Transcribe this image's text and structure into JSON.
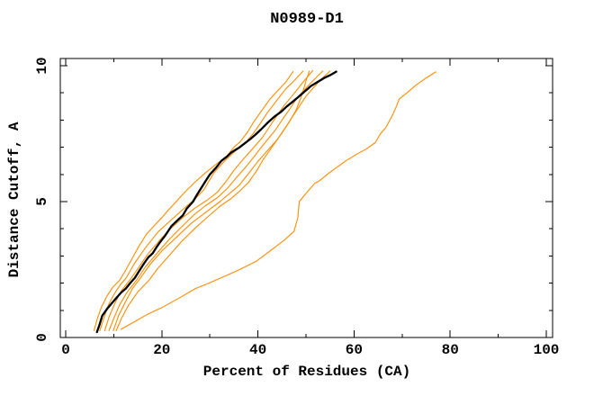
{
  "window": {
    "background": "#ffffff"
  },
  "chart_data": {
    "type": "line",
    "title": "N0989-D1",
    "xlabel": "Percent of Residues (CA)",
    "ylabel": "Distance Cutoff, A",
    "xlim": [
      0,
      100
    ],
    "ylim": [
      0,
      10
    ],
    "x_major_ticks": [
      0,
      20,
      40,
      60,
      80,
      100
    ],
    "x_minor_ticks": [
      10,
      30,
      50,
      70,
      90
    ],
    "y_major_ticks": [
      0,
      5,
      10
    ],
    "y_minor_ticks": [
      1,
      2,
      3,
      4,
      6,
      7,
      8,
      9
    ],
    "grid": false,
    "legend": "none",
    "frame_style": "closed box, inward mirrored ticks, rotated y tick labels",
    "colors": {
      "frame": "#000000",
      "text": "#000000",
      "reference_curve": "#000000",
      "model_curve": "#ff8c00"
    },
    "series": [
      {
        "name": "model-curve-1",
        "color": "#ff8c00",
        "stroke_width": 1.1,
        "points": [
          [
            5.9,
            0.25
          ],
          [
            6.6,
            0.7
          ],
          [
            7.4,
            1.1
          ],
          [
            8.5,
            1.5
          ],
          [
            9.8,
            1.85
          ],
          [
            11.2,
            2.1
          ],
          [
            12.4,
            2.45
          ],
          [
            13.8,
            2.9
          ],
          [
            15.2,
            3.35
          ],
          [
            16.8,
            3.8
          ],
          [
            18.6,
            4.15
          ],
          [
            20.2,
            4.45
          ],
          [
            21.4,
            4.7
          ],
          [
            23.0,
            5.0
          ],
          [
            24.8,
            5.35
          ],
          [
            26.8,
            5.7
          ],
          [
            29.0,
            6.05
          ],
          [
            31.5,
            6.4
          ],
          [
            33.4,
            6.65
          ],
          [
            35.0,
            7.0
          ],
          [
            36.3,
            7.2
          ],
          [
            37.8,
            7.55
          ],
          [
            39.2,
            7.95
          ],
          [
            40.6,
            8.3
          ],
          [
            42.4,
            8.75
          ],
          [
            44.2,
            9.1
          ],
          [
            45.8,
            9.4
          ],
          [
            47.3,
            9.78
          ]
        ]
      },
      {
        "name": "model-curve-2",
        "color": "#ff8c00",
        "stroke_width": 1.1,
        "points": [
          [
            7.1,
            0.25
          ],
          [
            7.9,
            0.7
          ],
          [
            8.9,
            1.2
          ],
          [
            10.1,
            1.6
          ],
          [
            11.4,
            1.95
          ],
          [
            12.6,
            2.2
          ],
          [
            14.4,
            2.75
          ],
          [
            16.8,
            3.35
          ],
          [
            19.3,
            3.9
          ],
          [
            21.8,
            4.3
          ],
          [
            24.6,
            4.75
          ],
          [
            27.2,
            5.15
          ],
          [
            28.8,
            5.45
          ],
          [
            29.8,
            5.75
          ],
          [
            30.8,
            6.05
          ],
          [
            32.8,
            6.45
          ],
          [
            35.2,
            6.85
          ],
          [
            37.3,
            7.15
          ],
          [
            39.0,
            7.5
          ],
          [
            40.4,
            7.85
          ],
          [
            41.9,
            8.25
          ],
          [
            43.8,
            8.7
          ],
          [
            45.8,
            9.15
          ],
          [
            47.8,
            9.5
          ],
          [
            49.4,
            9.8
          ]
        ]
      },
      {
        "name": "model-curve-3",
        "color": "#ff8c00",
        "stroke_width": 1.1,
        "points": [
          [
            8.1,
            0.25
          ],
          [
            9.0,
            0.75
          ],
          [
            10.2,
            1.25
          ],
          [
            11.7,
            1.75
          ],
          [
            13.5,
            2.15
          ],
          [
            15.1,
            2.55
          ],
          [
            17.0,
            3.05
          ],
          [
            19.4,
            3.55
          ],
          [
            21.8,
            4.0
          ],
          [
            24.3,
            4.4
          ],
          [
            26.8,
            4.75
          ],
          [
            29.4,
            5.05
          ],
          [
            31.6,
            5.35
          ],
          [
            33.4,
            5.75
          ],
          [
            35.0,
            6.15
          ],
          [
            36.9,
            6.55
          ],
          [
            38.9,
            6.95
          ],
          [
            40.9,
            7.35
          ],
          [
            42.4,
            7.75
          ],
          [
            43.9,
            8.15
          ],
          [
            45.5,
            8.55
          ],
          [
            47.4,
            8.95
          ],
          [
            49.4,
            9.4
          ],
          [
            51.4,
            9.82
          ]
        ]
      },
      {
        "name": "model-curve-4",
        "color": "#ff8c00",
        "stroke_width": 1.1,
        "points": [
          [
            9.0,
            0.25
          ],
          [
            10.0,
            0.7
          ],
          [
            11.2,
            1.2
          ],
          [
            12.9,
            1.7
          ],
          [
            14.7,
            2.1
          ],
          [
            16.6,
            2.6
          ],
          [
            19.0,
            3.1
          ],
          [
            21.5,
            3.6
          ],
          [
            24.0,
            4.05
          ],
          [
            26.6,
            4.5
          ],
          [
            29.1,
            4.85
          ],
          [
            31.6,
            5.15
          ],
          [
            33.7,
            5.5
          ],
          [
            35.6,
            5.9
          ],
          [
            37.6,
            6.3
          ],
          [
            39.6,
            6.75
          ],
          [
            41.6,
            7.2
          ],
          [
            43.5,
            7.6
          ],
          [
            45.0,
            8.0
          ],
          [
            46.6,
            8.4
          ],
          [
            48.1,
            8.8
          ],
          [
            50.1,
            9.2
          ],
          [
            52.0,
            9.55
          ],
          [
            53.5,
            9.8
          ]
        ]
      },
      {
        "name": "model-curve-5",
        "color": "#ff8c00",
        "stroke_width": 1.1,
        "points": [
          [
            9.9,
            0.25
          ],
          [
            11.0,
            0.8
          ],
          [
            12.4,
            1.3
          ],
          [
            13.9,
            1.8
          ],
          [
            15.6,
            2.2
          ],
          [
            17.6,
            2.7
          ],
          [
            20.1,
            3.2
          ],
          [
            23.1,
            3.7
          ],
          [
            26.1,
            4.2
          ],
          [
            29.1,
            4.6
          ],
          [
            32.1,
            5.0
          ],
          [
            34.1,
            5.3
          ],
          [
            36.1,
            5.6
          ],
          [
            38.1,
            6.05
          ],
          [
            40.1,
            6.5
          ],
          [
            42.1,
            6.9
          ],
          [
            44.1,
            7.3
          ],
          [
            45.6,
            7.7
          ],
          [
            47.1,
            8.1
          ],
          [
            48.6,
            8.5
          ],
          [
            50.1,
            8.9
          ],
          [
            51.6,
            9.2
          ],
          [
            53.1,
            9.5
          ],
          [
            55.0,
            9.8
          ]
        ]
      },
      {
        "name": "model-curve-6",
        "color": "#ff8c00",
        "stroke_width": 1.1,
        "points": [
          [
            10.5,
            0.25
          ],
          [
            11.6,
            0.7
          ],
          [
            13.1,
            1.2
          ],
          [
            15.1,
            1.7
          ],
          [
            17.3,
            2.1
          ],
          [
            19.2,
            2.55
          ],
          [
            21.7,
            3.05
          ],
          [
            24.2,
            3.55
          ],
          [
            26.8,
            4.0
          ],
          [
            29.3,
            4.4
          ],
          [
            31.9,
            4.8
          ],
          [
            34.3,
            5.1
          ],
          [
            36.3,
            5.4
          ],
          [
            38.0,
            5.7
          ],
          [
            39.6,
            6.1
          ],
          [
            41.1,
            6.55
          ],
          [
            43.1,
            7.05
          ],
          [
            45.1,
            7.55
          ],
          [
            46.6,
            7.95
          ],
          [
            47.9,
            8.35
          ],
          [
            48.9,
            8.8
          ],
          [
            49.6,
            9.2
          ],
          [
            50.1,
            9.5
          ],
          [
            50.7,
            9.8
          ]
        ]
      },
      {
        "name": "model-curve-7-outlier",
        "color": "#ff8c00",
        "stroke_width": 1.1,
        "points": [
          [
            11.5,
            0.3
          ],
          [
            14.0,
            0.55
          ],
          [
            17.0,
            0.85
          ],
          [
            20.0,
            1.1
          ],
          [
            23.6,
            1.45
          ],
          [
            27.0,
            1.8
          ],
          [
            29.8,
            2.0
          ],
          [
            33.0,
            2.25
          ],
          [
            36.2,
            2.5
          ],
          [
            39.6,
            2.8
          ],
          [
            43.0,
            3.25
          ],
          [
            45.6,
            3.6
          ],
          [
            47.5,
            3.9
          ],
          [
            48.3,
            4.4
          ],
          [
            48.6,
            5.0
          ],
          [
            50.0,
            5.3
          ],
          [
            51.8,
            5.67
          ],
          [
            52.7,
            5.75
          ],
          [
            54.6,
            6.03
          ],
          [
            56.5,
            6.27
          ],
          [
            58.3,
            6.5
          ],
          [
            60.6,
            6.75
          ],
          [
            62.5,
            6.93
          ],
          [
            64.4,
            7.17
          ],
          [
            65.5,
            7.5
          ],
          [
            66.6,
            7.72
          ],
          [
            67.9,
            8.15
          ],
          [
            68.8,
            8.5
          ],
          [
            69.4,
            8.77
          ],
          [
            71.0,
            9.0
          ],
          [
            73.0,
            9.3
          ],
          [
            75.0,
            9.55
          ],
          [
            77.0,
            9.77
          ]
        ]
      },
      {
        "name": "reference-curve-black",
        "color": "#000000",
        "stroke_width": 2.3,
        "points": [
          [
            6.5,
            0.2
          ],
          [
            7.0,
            0.45
          ],
          [
            7.6,
            0.8
          ],
          [
            8.6,
            1.05
          ],
          [
            9.3,
            1.2
          ],
          [
            10.5,
            1.45
          ],
          [
            11.5,
            1.65
          ],
          [
            12.5,
            1.8
          ],
          [
            13.4,
            2.0
          ],
          [
            14.4,
            2.2
          ],
          [
            15.3,
            2.45
          ],
          [
            16.2,
            2.7
          ],
          [
            17.2,
            2.95
          ],
          [
            18.1,
            3.1
          ],
          [
            19.0,
            3.35
          ],
          [
            19.6,
            3.5
          ],
          [
            20.7,
            3.75
          ],
          [
            22.0,
            4.1
          ],
          [
            23.2,
            4.3
          ],
          [
            24.4,
            4.5
          ],
          [
            25.2,
            4.75
          ],
          [
            26.5,
            5.0
          ],
          [
            27.3,
            5.25
          ],
          [
            28.2,
            5.5
          ],
          [
            29.1,
            5.75
          ],
          [
            30.0,
            6.0
          ],
          [
            31.3,
            6.25
          ],
          [
            32.4,
            6.5
          ],
          [
            33.5,
            6.65
          ],
          [
            34.4,
            6.8
          ],
          [
            35.3,
            6.9
          ],
          [
            36.2,
            7.0
          ],
          [
            37.3,
            7.15
          ],
          [
            38.4,
            7.3
          ],
          [
            39.4,
            7.45
          ],
          [
            40.6,
            7.65
          ],
          [
            42.0,
            7.9
          ],
          [
            43.6,
            8.15
          ],
          [
            44.8,
            8.3
          ],
          [
            46.0,
            8.5
          ],
          [
            47.4,
            8.7
          ],
          [
            48.4,
            8.85
          ],
          [
            49.7,
            9.05
          ],
          [
            51.0,
            9.25
          ],
          [
            52.4,
            9.4
          ],
          [
            53.8,
            9.55
          ],
          [
            55.0,
            9.65
          ],
          [
            56.3,
            9.78
          ]
        ]
      }
    ]
  }
}
